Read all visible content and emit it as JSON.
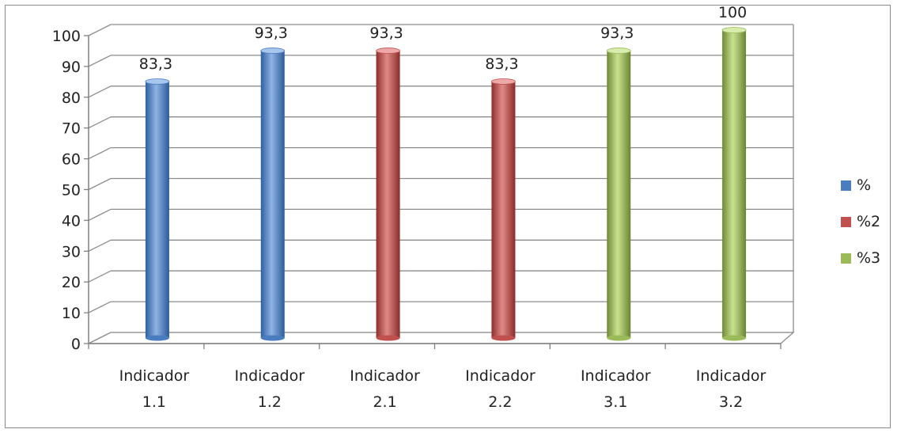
{
  "chart_data": {
    "type": "bar",
    "title": "",
    "xlabel": "",
    "ylabel": "",
    "ylim": [
      0,
      100
    ],
    "y_ticks": [
      0,
      10,
      20,
      30,
      40,
      50,
      60,
      70,
      80,
      90,
      100
    ],
    "grid": true,
    "legend_position": "right",
    "categories": [
      [
        "Indicador",
        "1.1"
      ],
      [
        "Indicador",
        "1.2"
      ],
      [
        "Indicador",
        "2.1"
      ],
      [
        "Indicador",
        "2.2"
      ],
      [
        "Indicador",
        "3.1"
      ],
      [
        "Indicador",
        "3.2"
      ]
    ],
    "series": [
      {
        "name": "%",
        "color": "#4a7dbf",
        "values": [
          83.3,
          93.3,
          null,
          null,
          null,
          null
        ]
      },
      {
        "name": "%2",
        "color": "#c0504d",
        "values": [
          null,
          null,
          93.3,
          83.3,
          null,
          null
        ]
      },
      {
        "name": "%3",
        "color": "#9bbb59",
        "values": [
          null,
          null,
          null,
          null,
          93.3,
          100
        ]
      }
    ],
    "data_labels": [
      "83,3",
      "93,3",
      "93,3",
      "83,3",
      "93,3",
      "100"
    ]
  }
}
